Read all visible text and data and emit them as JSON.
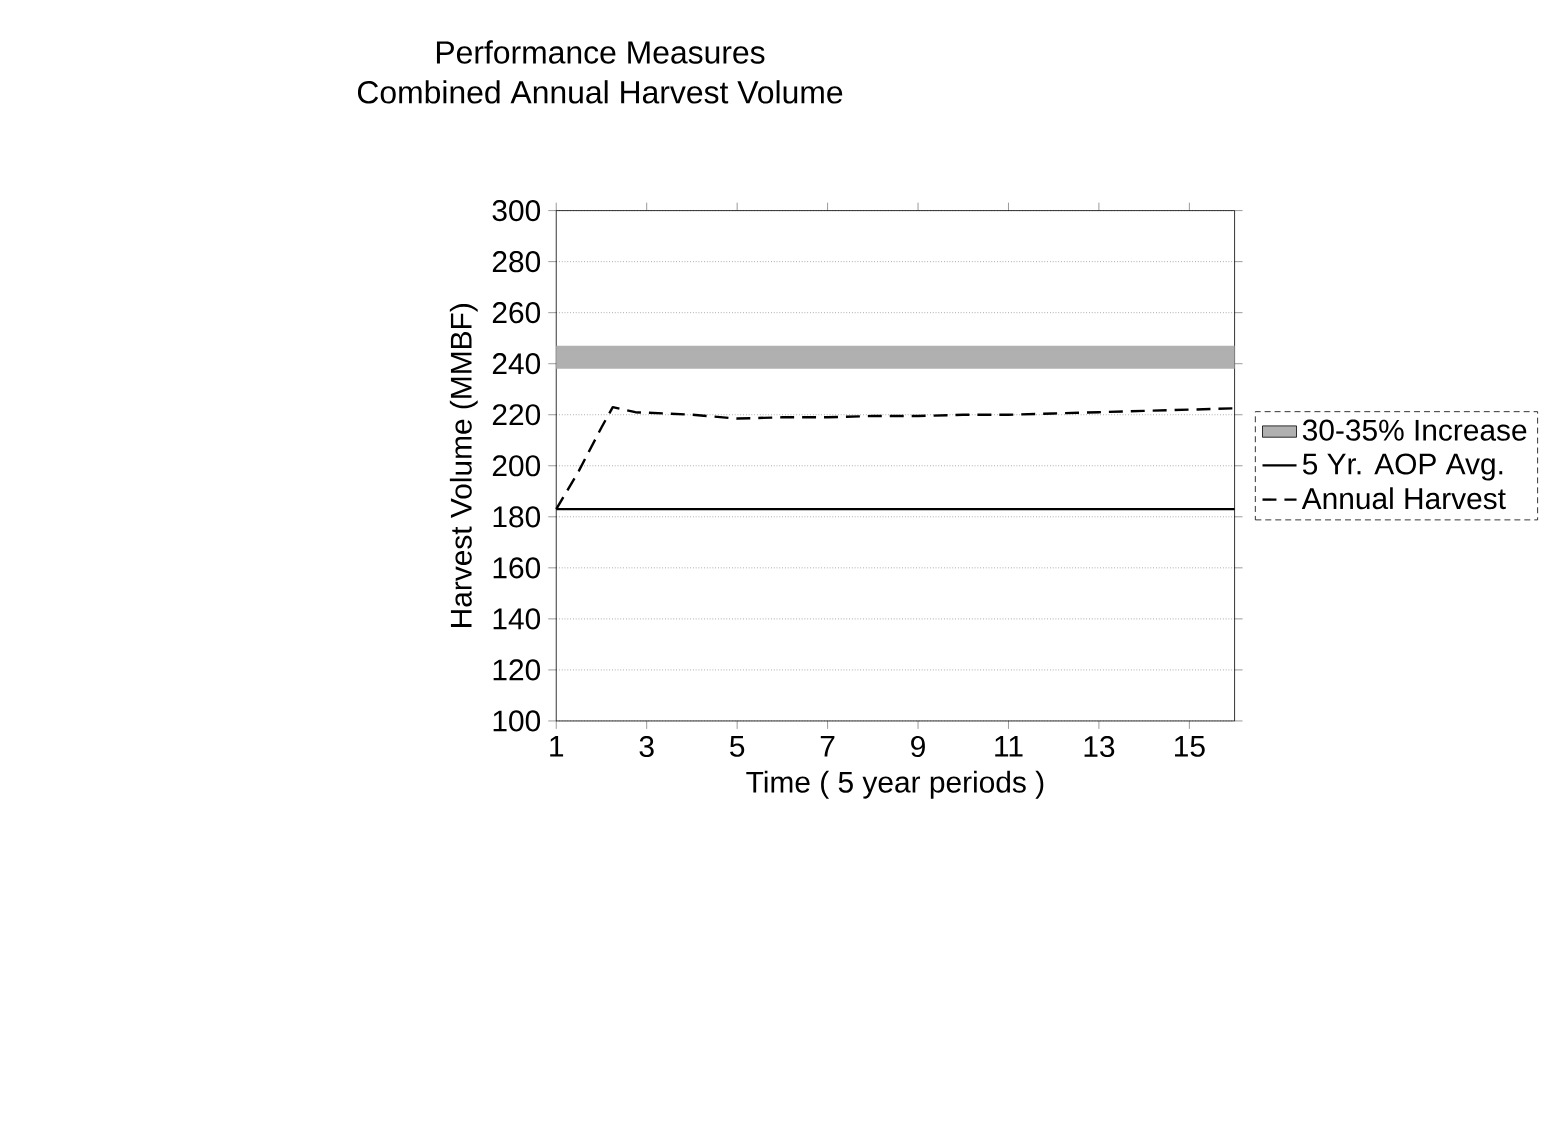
{
  "chart_data": {
    "type": "line",
    "title": "Performance Measures",
    "subtitle": "Combined Annual Harvest Volume",
    "xlabel": "Time ( 5 year periods )",
    "ylabel": "Harvest Volume (MMBF)",
    "x": [
      1,
      1.5,
      2,
      2.25,
      2.75,
      4,
      5,
      6,
      7,
      8,
      9,
      10,
      11,
      12,
      13,
      14,
      15,
      16
    ],
    "series": [
      {
        "name": "Annual Harvest",
        "color": "#000000",
        "line_style": "dashed",
        "values": [
          183,
          198,
          215,
          223,
          221,
          220,
          218.5,
          219,
          219,
          219.5,
          219.5,
          220,
          220,
          220.5,
          221,
          221.5,
          222,
          222.5
        ]
      }
    ],
    "bands": [
      {
        "axis": "y",
        "from": 238,
        "to": 247,
        "label": "30-35% Increase",
        "color": "#b0b0b0"
      }
    ],
    "ref_lines": [
      {
        "axis": "y",
        "value": 183,
        "label": "5 Yr. AOP Avg.",
        "color": "#000000",
        "line_style": "solid"
      }
    ],
    "xlim": [
      1,
      16
    ],
    "xticks": [
      1,
      3,
      5,
      7,
      9,
      11,
      13,
      15
    ],
    "ylim": [
      100,
      300
    ],
    "yticks": [
      100,
      120,
      140,
      160,
      180,
      200,
      220,
      240,
      260,
      280,
      300
    ],
    "grid": "y",
    "legend": "right",
    "marker": "none"
  }
}
